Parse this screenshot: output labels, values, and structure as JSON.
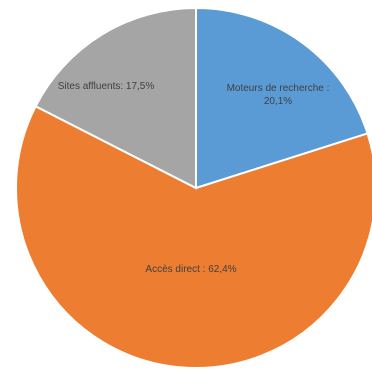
{
  "chart_data": {
    "type": "pie",
    "title": "",
    "legend": "none",
    "slices": [
      {
        "name": "Moteurs de recherche",
        "value": 20.1,
        "color": "#5b9bd5",
        "label_lines": [
          "Moteurs de recherche :",
          "20,1%"
        ]
      },
      {
        "name": "Accès direct",
        "value": 62.4,
        "color": "#ed7d31",
        "label_lines": [
          "Accès direct : 62,4%"
        ]
      },
      {
        "name": "Sites affluents",
        "value": 17.5,
        "color": "#a5a5a5",
        "label_lines": [
          "Sites affluents: 17,5%"
        ]
      }
    ]
  }
}
